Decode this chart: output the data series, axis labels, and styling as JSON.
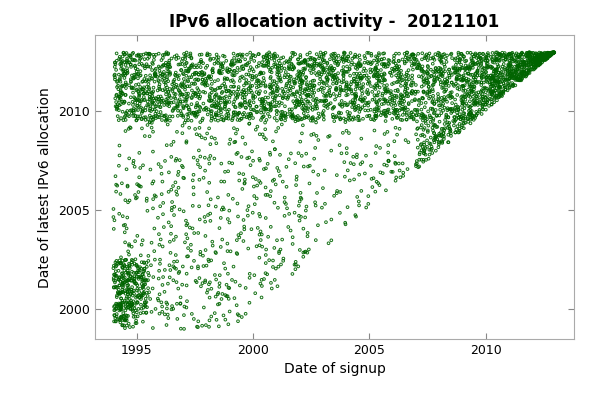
{
  "title": "IPv6 allocation activity -  20121101",
  "xlabel": "Date of signup",
  "ylabel": "Date of latest IPv6 allocation",
  "xlim": [
    1993.2,
    2013.8
  ],
  "ylim": [
    1998.5,
    2013.8
  ],
  "xticks": [
    1995,
    2000,
    2005,
    2010
  ],
  "yticks": [
    2000,
    2005,
    2010
  ],
  "marker_color": "#006400",
  "marker_size": 4.5,
  "background_color": "#ffffff",
  "seed": 42,
  "n_points": 4500
}
